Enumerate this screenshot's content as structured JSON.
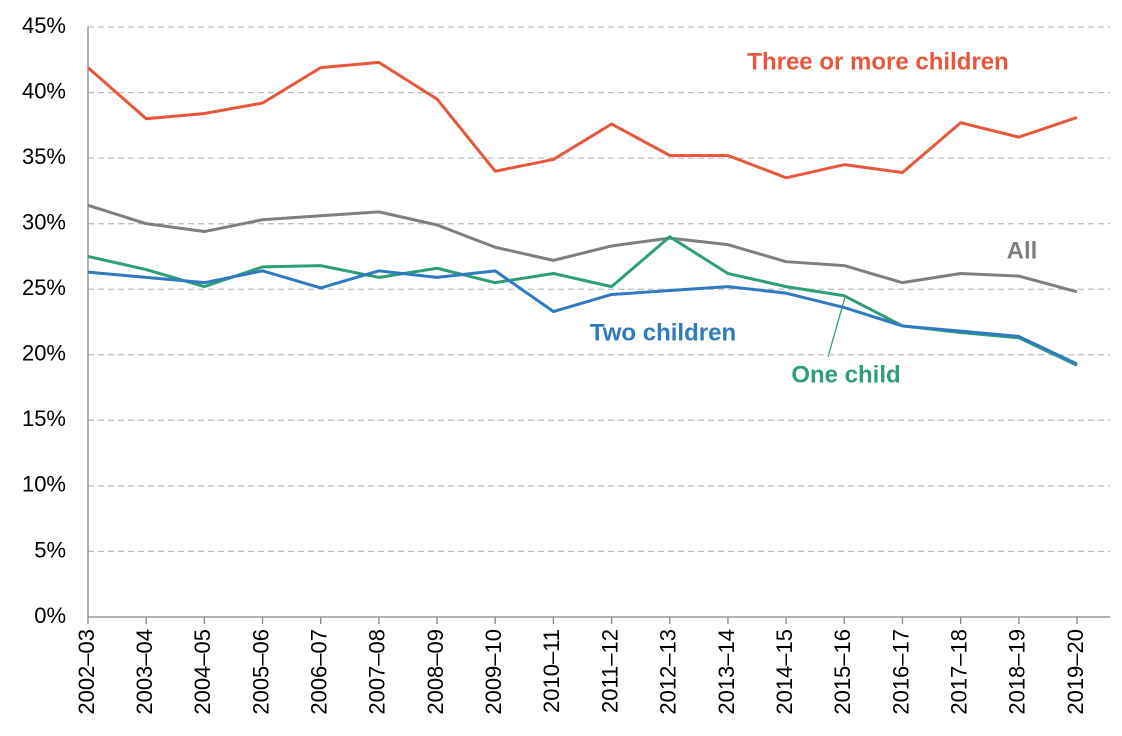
{
  "chart_data": {
    "type": "line",
    "categories": [
      "2002–03",
      "2003–04",
      "2004–05",
      "2005–06",
      "2006–07",
      "2007–08",
      "2008–09",
      "2009–10",
      "2010–11",
      "2011–12",
      "2012–13",
      "2013–14",
      "2014–15",
      "2015–16",
      "2016–17",
      "2017–18",
      "2018–19",
      "2019–20"
    ],
    "series": [
      {
        "name": "Three or more children",
        "color": "#e8573b",
        "values": [
          41.9,
          38.0,
          38.4,
          39.2,
          41.9,
          42.3,
          39.5,
          34.0,
          34.9,
          37.6,
          35.2,
          35.2,
          33.5,
          34.5,
          33.9,
          37.7,
          36.6,
          38.1
        ]
      },
      {
        "name": "All",
        "color": "#7f7f7f",
        "values": [
          31.4,
          30.0,
          29.4,
          30.3,
          30.6,
          30.9,
          29.9,
          28.2,
          27.2,
          28.3,
          28.9,
          28.4,
          27.1,
          26.8,
          25.5,
          26.2,
          26.0,
          24.8
        ]
      },
      {
        "name": "One child",
        "color": "#2e9e73",
        "values": [
          27.5,
          26.5,
          25.2,
          26.7,
          26.8,
          25.9,
          26.6,
          25.5,
          26.2,
          25.2,
          29.0,
          26.2,
          25.2,
          24.5,
          22.2,
          21.7,
          21.3,
          19.2
        ]
      },
      {
        "name": "Two children",
        "color": "#2f7ac0",
        "values": [
          26.3,
          25.9,
          25.5,
          26.4,
          25.1,
          26.4,
          25.9,
          26.4,
          23.3,
          24.6,
          24.9,
          25.2,
          24.7,
          23.6,
          22.2,
          21.8,
          21.4,
          19.3
        ]
      }
    ],
    "ylim": [
      0,
      45
    ],
    "yticks": [
      {
        "value": 0,
        "label": "0%"
      },
      {
        "value": 5,
        "label": "5%"
      },
      {
        "value": 10,
        "label": "10%"
      },
      {
        "value": 15,
        "label": "15%"
      },
      {
        "value": 20,
        "label": "20%"
      },
      {
        "value": 25,
        "label": "25%"
      },
      {
        "value": 30,
        "label": "30%"
      },
      {
        "value": 35,
        "label": "35%"
      },
      {
        "value": 40,
        "label": "40%"
      },
      {
        "value": 45,
        "label": "45%"
      }
    ],
    "grid": true
  }
}
